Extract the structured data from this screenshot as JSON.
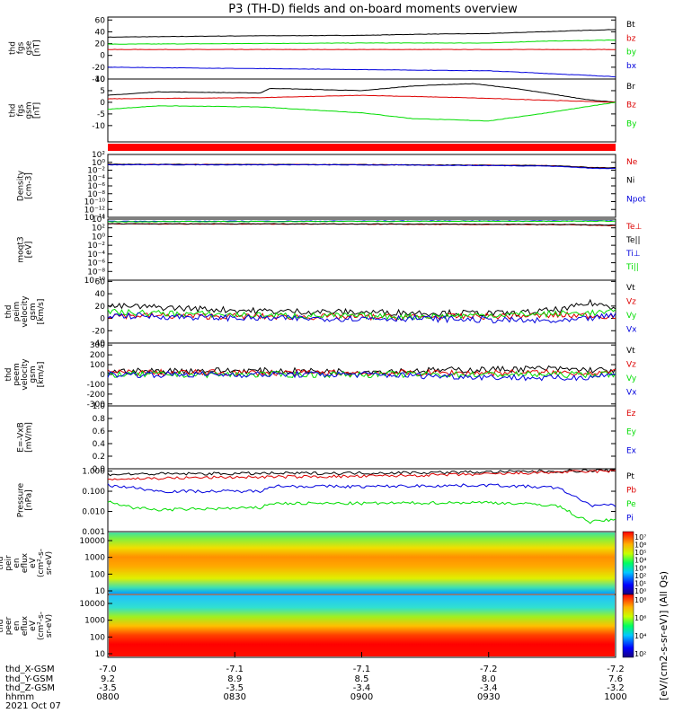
{
  "title": "P3 (TH-D) fields and on-board moments overview",
  "colorbar_label": "[eV/(cm2-s-sr-eV)] (All Qs)",
  "colors": {
    "black": "#000000",
    "red": "#dd0000",
    "green": "#00dd00",
    "blue": "#0000dd",
    "flag_red": "#ff0000"
  },
  "chart_data": [
    {
      "type": "line",
      "id": "fgs_gse",
      "ylabel": "thd\nfgs\ngse\n[nT]",
      "ylim": [
        -40,
        65
      ],
      "yticks": [
        "60",
        "40",
        "20",
        "0",
        "-20",
        "-40"
      ],
      "yticks_values": [
        60,
        40,
        20,
        0,
        -20,
        -40
      ],
      "series": [
        {
          "name": "Bt",
          "color": "#000000",
          "x": [
            0,
            0.25,
            0.5,
            0.62,
            0.75,
            0.85,
            1
          ],
          "values": [
            31,
            33,
            34,
            36,
            37,
            40,
            44
          ]
        },
        {
          "name": "bz",
          "color": "#dd0000",
          "x": [
            0,
            0.5,
            1
          ],
          "values": [
            10,
            10,
            10
          ]
        },
        {
          "name": "by",
          "color": "#00dd00",
          "x": [
            0,
            0.25,
            0.5,
            0.75,
            0.85,
            1
          ],
          "values": [
            19,
            20,
            21,
            21,
            24,
            26
          ]
        },
        {
          "name": "bx",
          "color": "#0000dd",
          "x": [
            0,
            0.25,
            0.5,
            0.75,
            0.85,
            1
          ],
          "values": [
            -20,
            -22,
            -24,
            -26,
            -30,
            -36
          ]
        }
      ]
    },
    {
      "type": "line",
      "id": "fgs_gsm",
      "ylabel": "thd\nfgs\ngsm\n[nT]",
      "ylim": [
        -17,
        10
      ],
      "yticks": [
        "10",
        "5",
        "0",
        "-5",
        "-10"
      ],
      "yticks_values": [
        10,
        5,
        0,
        -5,
        -10
      ],
      "series": [
        {
          "name": "Br",
          "color": "#000000",
          "x": [
            0,
            0.1,
            0.3,
            0.32,
            0.5,
            0.6,
            0.65,
            0.72,
            0.8,
            0.95,
            1
          ],
          "values": [
            3,
            4.5,
            4,
            6,
            5,
            7,
            7.5,
            8,
            6,
            1,
            0
          ]
        },
        {
          "name": "Bz",
          "color": "#dd0000",
          "x": [
            0,
            0.3,
            0.5,
            0.7,
            1
          ],
          "values": [
            1.5,
            2,
            3,
            2,
            0
          ]
        },
        {
          "name": "By",
          "color": "#00dd00",
          "x": [
            0,
            0.1,
            0.3,
            0.5,
            0.6,
            0.75,
            0.85,
            1
          ],
          "values": [
            -3,
            -1.5,
            -2,
            -4.5,
            -7,
            -8,
            -5,
            0
          ]
        }
      ]
    },
    {
      "type": "flag",
      "id": "flag_bar",
      "color": "#ff0000"
    },
    {
      "type": "line",
      "id": "density",
      "ylabel": "Density\n[cm-3]",
      "scale": "log",
      "ylim": [
        1e-14,
        100
      ],
      "yticks": [
        "10²",
        "10⁰",
        "10⁻²",
        "10⁻⁴",
        "10⁻⁶",
        "10⁻⁸",
        "10⁻¹⁰",
        "10⁻¹²",
        "10⁻¹⁴"
      ],
      "yticks_values": [
        2,
        0,
        -2,
        -4,
        -6,
        -8,
        -10,
        -12,
        -14
      ],
      "series": [
        {
          "name": "Ne",
          "color": "#dd0000",
          "x": [
            0,
            0.5,
            0.85,
            0.95,
            1
          ],
          "values": [
            0.3,
            0.25,
            0.15,
            0.05,
            0.04
          ]
        },
        {
          "name": "Ni",
          "color": "#000000",
          "x": [
            0,
            0.5,
            0.85,
            0.95,
            1
          ],
          "values": [
            0.3,
            0.25,
            0.15,
            0.05,
            0.04
          ]
        },
        {
          "name": "Npot",
          "color": "#0000dd",
          "x": [
            0,
            0.5,
            0.85,
            0.95,
            1
          ],
          "values": [
            0.25,
            0.22,
            0.12,
            0.03,
            0.03
          ]
        }
      ]
    },
    {
      "type": "line",
      "id": "temperature",
      "ylabel": "moqt3\n[eV]",
      "scale": "log",
      "ylim": [
        1e-10,
        10000
      ],
      "yticks": [
        "10⁴",
        "10²",
        "10⁰",
        "10⁻²",
        "10⁻⁴",
        "10⁻⁶",
        "10⁻⁸",
        "10⁻¹⁰"
      ],
      "yticks_values": [
        4,
        2,
        0,
        -2,
        -4,
        -6,
        -8,
        -10
      ],
      "series": [
        {
          "name": "Te⊥",
          "color": "#dd0000",
          "x": [
            0,
            0.5,
            0.9,
            1
          ],
          "values": [
            800,
            700,
            500,
            300
          ]
        },
        {
          "name": "Te||",
          "color": "#000000",
          "x": [
            0,
            0.5,
            0.9,
            1
          ],
          "values": [
            900,
            800,
            600,
            400
          ]
        },
        {
          "name": "Ti⊥",
          "color": "#0000dd",
          "x": [
            0,
            0.5,
            1
          ],
          "values": [
            3000,
            3500,
            4000
          ]
        },
        {
          "name": "Ti||",
          "color": "#00dd00",
          "x": [
            0,
            0.5,
            1
          ],
          "values": [
            2500,
            3000,
            3500
          ]
        }
      ]
    },
    {
      "type": "line",
      "id": "peim_velocity",
      "ylabel": "thd\npeim\nvelocity\ngsm\n[km/s]",
      "ylim": [
        -40,
        62
      ],
      "yticks": [
        "60",
        "40",
        "20",
        "0",
        "-20",
        "-40"
      ],
      "yticks_values": [
        60,
        40,
        20,
        0,
        -20,
        -40
      ],
      "noisy": true,
      "series": [
        {
          "name": "Vt",
          "color": "#000000",
          "x": [
            0,
            0.1,
            0.2,
            0.3,
            0.5,
            0.8,
            0.9,
            0.95,
            1
          ],
          "values": [
            20,
            18,
            15,
            12,
            10,
            8,
            15,
            25,
            18
          ]
        },
        {
          "name": "Vz",
          "color": "#dd0000",
          "x": [
            0,
            0.3,
            0.6,
            0.9,
            1
          ],
          "values": [
            5,
            3,
            2,
            5,
            4
          ]
        },
        {
          "name": "Vy",
          "color": "#00dd00",
          "x": [
            0,
            0.3,
            0.6,
            0.9,
            1
          ],
          "values": [
            10,
            5,
            3,
            8,
            10
          ]
        },
        {
          "name": "Vx",
          "color": "#0000dd",
          "x": [
            0,
            0.3,
            0.6,
            0.9,
            1
          ],
          "values": [
            5,
            0,
            0,
            -5,
            5
          ]
        }
      ]
    },
    {
      "type": "line",
      "id": "peem_velocity",
      "ylabel": "thd\npeem\nvelocity\ngsm\n[km/s]",
      "ylim": [
        -320,
        320
      ],
      "yticks": [
        "300",
        "200",
        "100",
        "0",
        "-100",
        "-200",
        "-300"
      ],
      "yticks_values": [
        300,
        200,
        100,
        0,
        -100,
        -200,
        -300
      ],
      "noisy": true,
      "series": [
        {
          "name": "Vt",
          "color": "#000000",
          "x": [
            0,
            0.2,
            0.5,
            0.85,
            1
          ],
          "values": [
            30,
            40,
            30,
            60,
            40
          ]
        },
        {
          "name": "Vz",
          "color": "#dd0000",
          "x": [
            0,
            0.5,
            1
          ],
          "values": [
            20,
            15,
            20
          ]
        },
        {
          "name": "Vy",
          "color": "#00dd00",
          "x": [
            0,
            0.5,
            1
          ],
          "values": [
            0,
            0,
            0
          ]
        },
        {
          "name": "Vx",
          "color": "#0000dd",
          "x": [
            0,
            0.5,
            0.9,
            1
          ],
          "values": [
            0,
            0,
            -40,
            0
          ]
        }
      ]
    },
    {
      "type": "line",
      "id": "efield",
      "ylabel": "E=-VxB\n[mV/m]",
      "ylim": [
        0,
        1
      ],
      "yticks": [
        "1.0",
        "0.8",
        "0.6",
        "0.4",
        "0.2",
        "0.0"
      ],
      "yticks_values": [
        1.0,
        0.8,
        0.6,
        0.4,
        0.2,
        0.0
      ],
      "series": [
        {
          "name": "Ez",
          "color": "#dd0000",
          "x": [],
          "values": []
        },
        {
          "name": "Ey",
          "color": "#00dd00",
          "x": [],
          "values": []
        },
        {
          "name": "Ex",
          "color": "#0000dd",
          "x": [],
          "values": []
        }
      ]
    },
    {
      "type": "line",
      "id": "pressure",
      "ylabel": "Pressure\n[nPa]",
      "scale": "log",
      "ylim": [
        0.001,
        1.3
      ],
      "yticks": [
        "1.000",
        "0.100",
        "0.010",
        "0.001"
      ],
      "yticks_values": [
        0,
        -1,
        -2,
        -3
      ],
      "series": [
        {
          "name": "Pt",
          "color": "#000000",
          "x": [
            0,
            0.5,
            0.75,
            0.9,
            1
          ],
          "values": [
            0.7,
            0.8,
            0.9,
            1.0,
            1.1
          ]
        },
        {
          "name": "Pb",
          "color": "#dd0000",
          "x": [
            0,
            0.25,
            0.5,
            0.75,
            0.9,
            1
          ],
          "values": [
            0.4,
            0.5,
            0.55,
            0.7,
            0.9,
            1.0
          ]
        },
        {
          "name": "Pe",
          "color": "#00dd00",
          "x": [
            0,
            0.05,
            0.1,
            0.3,
            0.32,
            0.5,
            0.75,
            0.88,
            0.92,
            0.95,
            1
          ],
          "values": [
            0.03,
            0.015,
            0.012,
            0.015,
            0.025,
            0.025,
            0.028,
            0.02,
            0.006,
            0.003,
            0.004
          ]
        },
        {
          "name": "Pi",
          "color": "#0000dd",
          "x": [
            0,
            0.05,
            0.1,
            0.3,
            0.32,
            0.5,
            0.75,
            0.88,
            0.92,
            0.95,
            1
          ],
          "values": [
            0.2,
            0.15,
            0.1,
            0.1,
            0.18,
            0.17,
            0.2,
            0.15,
            0.05,
            0.02,
            0.02
          ]
        }
      ]
    },
    {
      "type": "heatmap",
      "id": "peir_eflux",
      "ylabel": "thd\npeir\nen\neflux\neV\n(cm²-s-\nsr-eV)",
      "yticks": [
        "10000",
        "1000",
        "100",
        "10"
      ],
      "colorbar_ticks": [
        "10⁷",
        "10⁶",
        "10⁵",
        "10⁴",
        "10³",
        "10²",
        "10¹",
        "10⁰"
      ]
    },
    {
      "type": "heatmap",
      "id": "peer_eflux",
      "ylabel": "thd\npeer\nen\neflux\neV\n(cm²-s-\nsr-eV)",
      "yticks": [
        "10000",
        "1000",
        "100",
        "10"
      ],
      "colorbar_ticks": [
        "10⁸",
        "10⁶",
        "10⁴",
        "10²"
      ]
    }
  ],
  "xaxis": {
    "row_labels": [
      "thd_X-GSM",
      "thd_Y-GSM",
      "thd_Z-GSM",
      "hhmm",
      "2021 Oct 07"
    ],
    "ticks": [
      [
        "-7.0",
        "9.2",
        "-3.5",
        "0800"
      ],
      [
        "-7.1",
        "8.9",
        "-3.5",
        "0830"
      ],
      [
        "-7.1",
        "8.5",
        "-3.4",
        "0900"
      ],
      [
        "-7.2",
        "8.0",
        "-3.4",
        "0930"
      ],
      [
        "-7.2",
        "7.6",
        "-3.2",
        "1000"
      ]
    ]
  }
}
